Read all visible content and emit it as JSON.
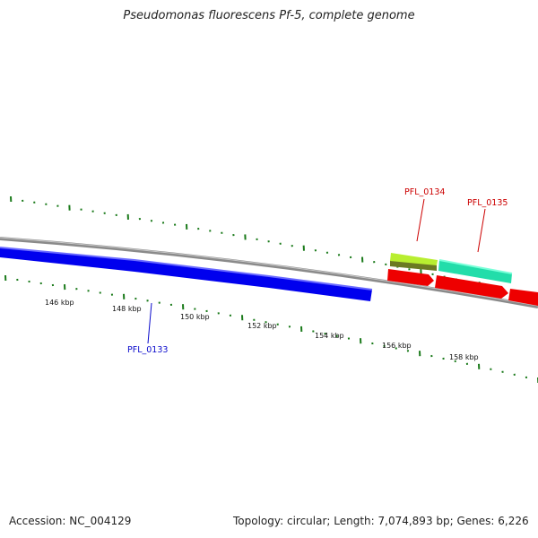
{
  "title": "Pseudomonas fluorescens Pf-5, complete genome",
  "footer": {
    "accession": "Accession: NC_004129",
    "summary": "Topology: circular; Length: 7,074,893 bp; Genes: 6,226"
  },
  "scale": {
    "tick_labels": [
      "146 kbp",
      "148 kbp",
      "150 kbp",
      "152 kbp",
      "154 kbp",
      "156 kbp",
      "158 kbp"
    ]
  },
  "genes": [
    {
      "name": "PFL_0133",
      "color": "#0a0acc"
    },
    {
      "name": "PFL_0134",
      "color": "#cc0000"
    },
    {
      "name": "PFL_0135",
      "color": "#cc0000"
    }
  ],
  "colors": {
    "backbone": "#8a8a8a",
    "tick": "#1a7a1a",
    "blue_feature": "#0000ee",
    "red_feature": "#ee0000",
    "olive_feature": "#6b7a22",
    "lime_feature": "#b8ee30",
    "teal_feature": "#22ddaa"
  }
}
